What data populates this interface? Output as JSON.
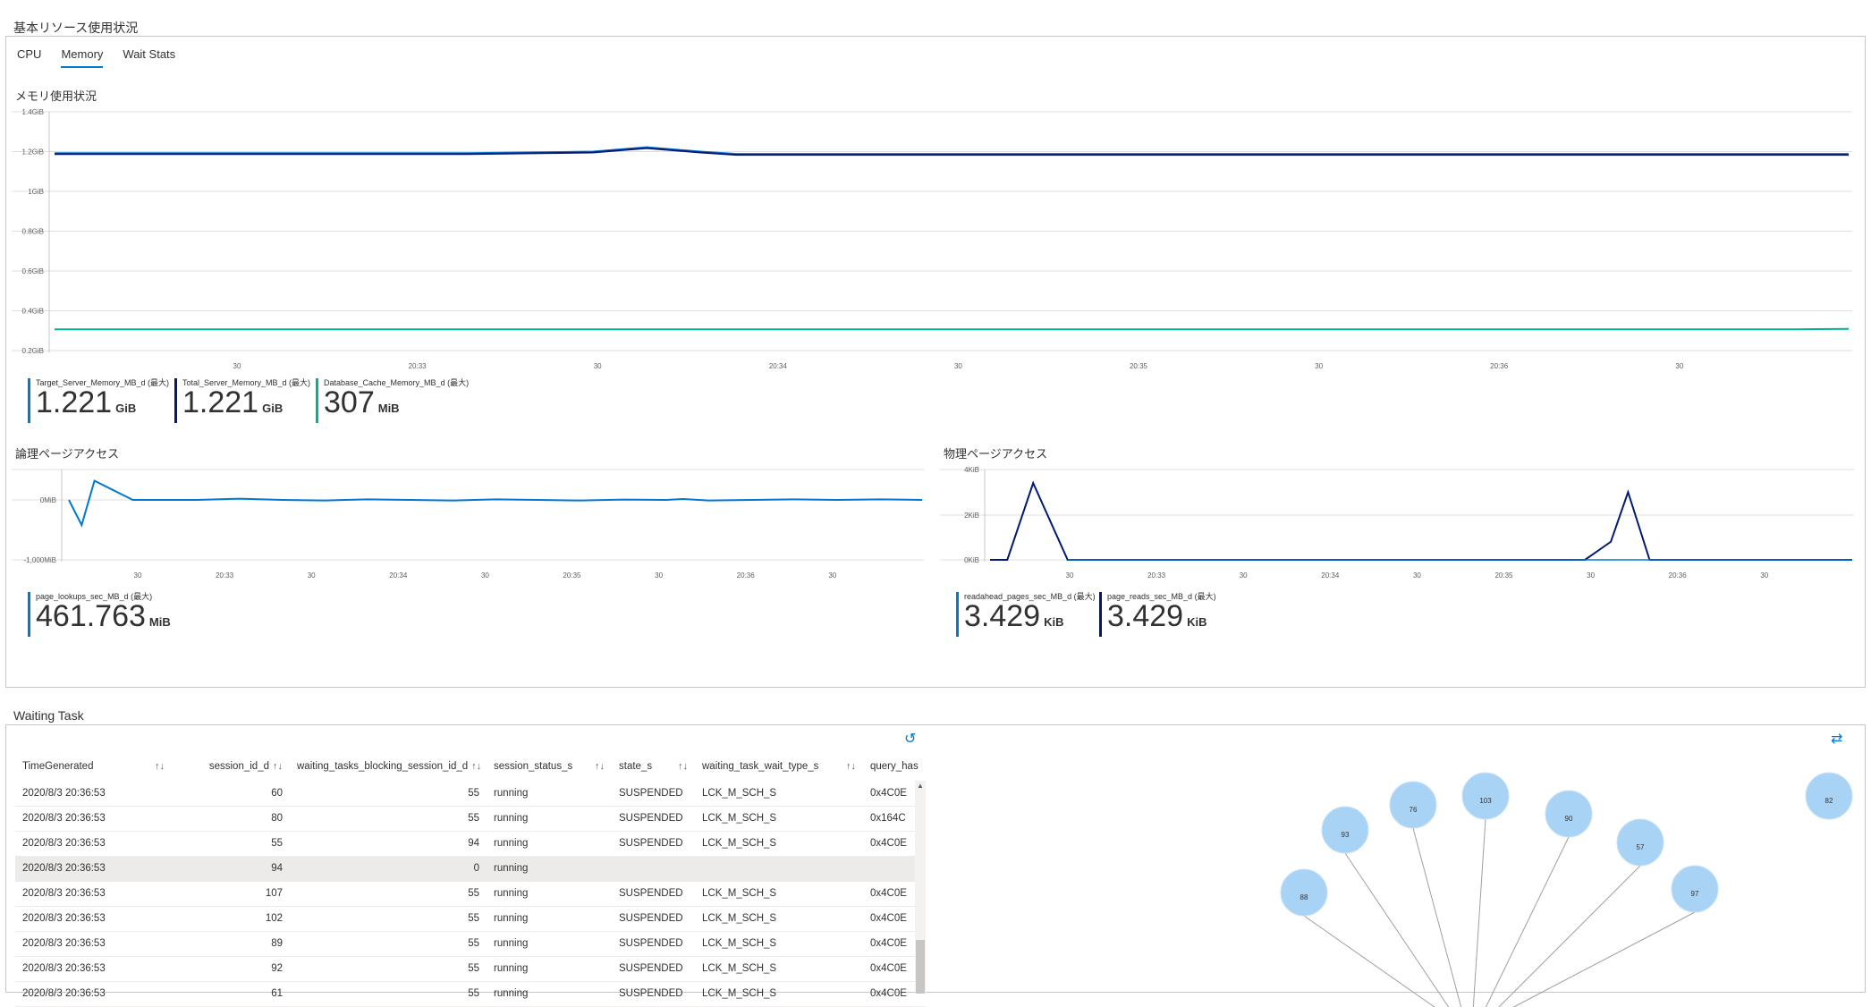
{
  "header": {
    "title": "基本リソース使用状況"
  },
  "tabs": [
    {
      "label": "CPU",
      "active": false
    },
    {
      "label": "Memory",
      "active": true
    },
    {
      "label": "Wait Stats",
      "active": false
    }
  ],
  "colors": {
    "accent": "#0078d4",
    "navy": "#001a72",
    "teal": "#00b294",
    "blue": "#0078d4"
  },
  "memory_chart": {
    "title": "メモリ使用状況",
    "y_ticks": [
      "1.4GiB",
      "1.2GiB",
      "1GiB",
      "0.8GiB",
      "0.6GiB",
      "0.4GiB",
      "0.2GiB"
    ],
    "x_ticks": [
      "30",
      "20:33",
      "30",
      "20:34",
      "30",
      "20:35",
      "30",
      "20:36",
      "30"
    ],
    "metrics": [
      {
        "label": "Target_Server_Memory_MB_d (最大)",
        "value": "1.221",
        "unit": "GiB",
        "color": "#0078d4"
      },
      {
        "label": "Total_Server_Memory_MB_d (最大)",
        "value": "1.221",
        "unit": "GiB",
        "color": "#001a72"
      },
      {
        "label": "Database_Cache_Memory_MB_d (最大)",
        "value": "307",
        "unit": "MiB",
        "color": "#00b294"
      }
    ]
  },
  "logical_chart": {
    "title": "論理ページアクセス",
    "y_ticks": [
      "0MiB",
      "-1,000MiB"
    ],
    "x_ticks": [
      "30",
      "20:33",
      "30",
      "20:34",
      "30",
      "20:35",
      "30",
      "20:36",
      "30"
    ],
    "metrics": [
      {
        "label": "page_lookups_sec_MB_d (最大)",
        "value": "461.763",
        "unit": "MiB",
        "color": "#0078d4"
      }
    ]
  },
  "physical_chart": {
    "title": "物理ページアクセス",
    "y_ticks": [
      "4KiB",
      "2KiB",
      "0KiB"
    ],
    "x_ticks": [
      "30",
      "20:33",
      "30",
      "20:34",
      "30",
      "20:35",
      "30",
      "20:36",
      "30"
    ],
    "metrics": [
      {
        "label": "readahead_pages_sec_MB_d (最大)",
        "value": "3.429",
        "unit": "KiB",
        "color": "#0078d4"
      },
      {
        "label": "page_reads_sec_MB_d (最大)",
        "value": "3.429",
        "unit": "KiB",
        "color": "#001a72"
      }
    ]
  },
  "waiting": {
    "title": "Waiting Task",
    "columns": [
      "TimeGenerated",
      "session_id_d",
      "waiting_tasks_blocking_session_id_d",
      "session_status_s",
      "state_s",
      "waiting_task_wait_type_s",
      "query_has"
    ],
    "rows": [
      {
        "time": "2020/8/3 20:36:53",
        "sid": "60",
        "blk": "55",
        "status": "running",
        "state": "SUSPENDED",
        "wait": "LCK_M_SCH_S",
        "query": "0x4C0E"
      },
      {
        "time": "2020/8/3 20:36:53",
        "sid": "80",
        "blk": "55",
        "status": "running",
        "state": "SUSPENDED",
        "wait": "LCK_M_SCH_S",
        "query": "0x164C"
      },
      {
        "time": "2020/8/3 20:36:53",
        "sid": "55",
        "blk": "94",
        "status": "running",
        "state": "SUSPENDED",
        "wait": "LCK_M_SCH_S",
        "query": "0x4C0E"
      },
      {
        "time": "2020/8/3 20:36:53",
        "sid": "94",
        "blk": "0",
        "status": "running",
        "state": "",
        "wait": "",
        "query": ""
      },
      {
        "time": "2020/8/3 20:36:53",
        "sid": "107",
        "blk": "55",
        "status": "running",
        "state": "SUSPENDED",
        "wait": "LCK_M_SCH_S",
        "query": "0x4C0E"
      },
      {
        "time": "2020/8/3 20:36:53",
        "sid": "102",
        "blk": "55",
        "status": "running",
        "state": "SUSPENDED",
        "wait": "LCK_M_SCH_S",
        "query": "0x4C0E"
      },
      {
        "time": "2020/8/3 20:36:53",
        "sid": "89",
        "blk": "55",
        "status": "running",
        "state": "SUSPENDED",
        "wait": "LCK_M_SCH_S",
        "query": "0x4C0E"
      },
      {
        "time": "2020/8/3 20:36:53",
        "sid": "92",
        "blk": "55",
        "status": "running",
        "state": "SUSPENDED",
        "wait": "LCK_M_SCH_S",
        "query": "0x4C0E"
      },
      {
        "time": "2020/8/3 20:36:53",
        "sid": "61",
        "blk": "55",
        "status": "running",
        "state": "SUSPENDED",
        "wait": "LCK_M_SCH_S",
        "query": "0x4C0E"
      }
    ],
    "selected_row": 3
  },
  "graph": {
    "nodes": [
      {
        "label": "88"
      },
      {
        "label": "93"
      },
      {
        "label": "76"
      },
      {
        "label": "103"
      },
      {
        "label": "90"
      },
      {
        "label": "57"
      },
      {
        "label": "97"
      },
      {
        "label": "82"
      }
    ]
  }
}
